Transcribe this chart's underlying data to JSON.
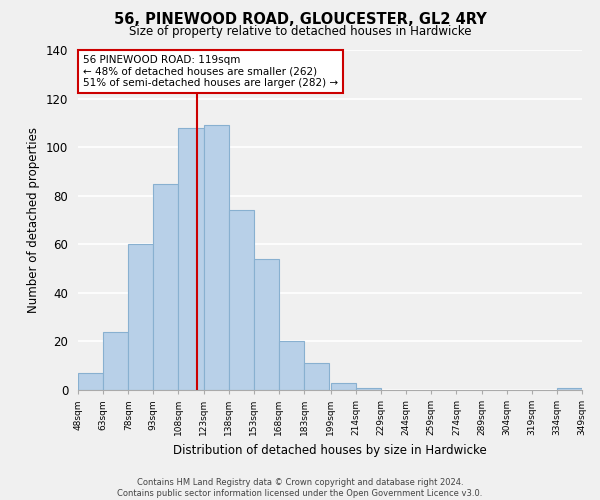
{
  "title_line1": "56, PINEWOOD ROAD, GLOUCESTER, GL2 4RY",
  "title_line2": "Size of property relative to detached houses in Hardwicke",
  "xlabel": "Distribution of detached houses by size in Hardwicke",
  "ylabel": "Number of detached properties",
  "bins": [
    48,
    63,
    78,
    93,
    108,
    123,
    138,
    153,
    168,
    183,
    199,
    214,
    229,
    244,
    259,
    274,
    289,
    304,
    319,
    334,
    349
  ],
  "counts": [
    7,
    24,
    60,
    85,
    108,
    109,
    74,
    54,
    20,
    11,
    3,
    1,
    0,
    0,
    0,
    0,
    0,
    0,
    0,
    1
  ],
  "bar_color": "#b8d0e8",
  "bar_edge_color": "#88b0d0",
  "vline_x": 119,
  "vline_color": "#cc0000",
  "annotation_line1": "56 PINEWOOD ROAD: 119sqm",
  "annotation_line2": "← 48% of detached houses are smaller (262)",
  "annotation_line3": "51% of semi-detached houses are larger (282) →",
  "annotation_box_edge": "#cc0000",
  "annotation_box_face": "white",
  "ylim": [
    0,
    140
  ],
  "yticks": [
    0,
    20,
    40,
    60,
    80,
    100,
    120,
    140
  ],
  "tick_labels": [
    "48sqm",
    "63sqm",
    "78sqm",
    "93sqm",
    "108sqm",
    "123sqm",
    "138sqm",
    "153sqm",
    "168sqm",
    "183sqm",
    "199sqm",
    "214sqm",
    "229sqm",
    "244sqm",
    "259sqm",
    "274sqm",
    "289sqm",
    "304sqm",
    "319sqm",
    "334sqm",
    "349sqm"
  ],
  "footer_line1": "Contains HM Land Registry data © Crown copyright and database right 2024.",
  "footer_line2": "Contains public sector information licensed under the Open Government Licence v3.0.",
  "bg_color": "#f0f0f0",
  "plot_bg_color": "#f0f0f0",
  "grid_color": "white"
}
